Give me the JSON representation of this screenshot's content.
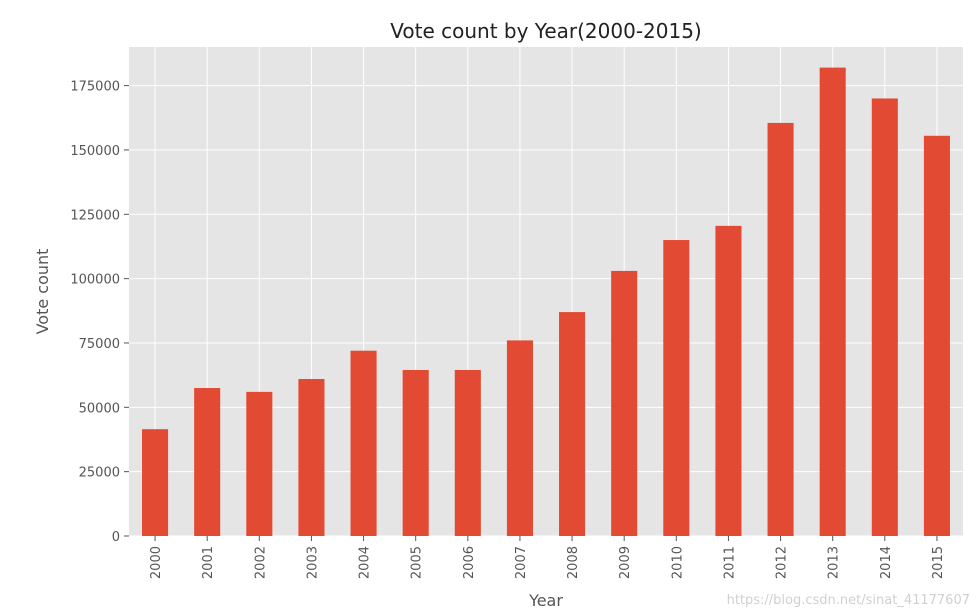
{
  "chart_data": {
    "type": "bar",
    "title": "Vote count by Year(2000-2015)",
    "xlabel": "Year",
    "ylabel": "Vote count",
    "categories": [
      "2000",
      "2001",
      "2002",
      "2003",
      "2004",
      "2005",
      "2006",
      "2007",
      "2008",
      "2009",
      "2010",
      "2011",
      "2012",
      "2013",
      "2014",
      "2015"
    ],
    "values": [
      41500,
      57500,
      56000,
      61000,
      72000,
      64500,
      64500,
      76000,
      87000,
      103000,
      115000,
      120500,
      160500,
      182000,
      170000,
      155500
    ],
    "ylim": [
      0,
      190000
    ],
    "yticks": [
      0,
      25000,
      50000,
      75000,
      100000,
      125000,
      150000,
      175000
    ],
    "ytick_labels": [
      "0",
      "25000",
      "50000",
      "75000",
      "100000",
      "125000",
      "150000",
      "175000"
    ],
    "grid": true,
    "bar_color": "#E24A33",
    "background_color": "#E5E5E5",
    "grid_color": "#FFFFFF"
  },
  "watermark": "https://blog.csdn.net/sinat_41177607"
}
